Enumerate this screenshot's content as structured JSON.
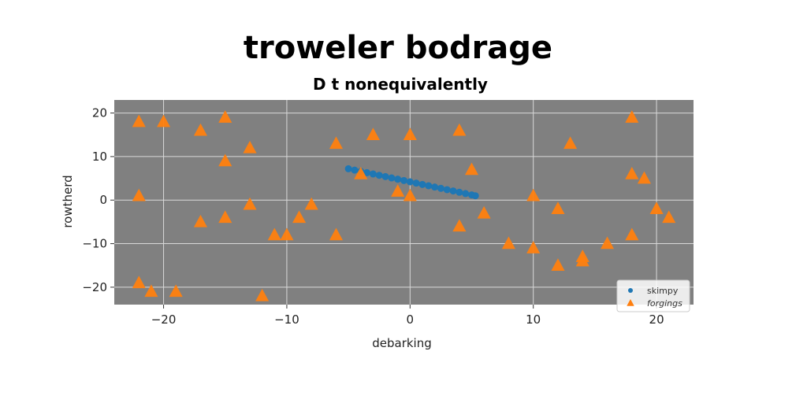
{
  "chart_data": {
    "type": "scatter",
    "title": "troweler bodrage",
    "subtitle": "D t nonequivalently",
    "xlabel": "debarking",
    "ylabel": "rowtherd",
    "xlim": [
      -24,
      23
    ],
    "ylim": [
      -24,
      23
    ],
    "xticks": [
      -20,
      -10,
      0,
      10,
      20
    ],
    "xtick_labels": [
      "−20",
      "−10",
      "0",
      "10",
      "20"
    ],
    "yticks": [
      20,
      10,
      0,
      -10,
      -20
    ],
    "ytick_labels": [
      "20",
      "10",
      "0",
      "−10",
      "−20"
    ],
    "grid": true,
    "legend_position": "lower-right",
    "colors": {
      "background": "#808080",
      "grid": "#d9d9d9",
      "skimpy": "#1f77b4",
      "forgings": "#ff7f0e"
    },
    "series": [
      {
        "name": "skimpy",
        "marker": "circle",
        "points": [
          [
            -5.0,
            7.2
          ],
          [
            -4.5,
            6.9
          ],
          [
            -4.0,
            6.6
          ],
          [
            -3.5,
            6.3
          ],
          [
            -3.0,
            6.0
          ],
          [
            -2.5,
            5.7
          ],
          [
            -2.0,
            5.4
          ],
          [
            -1.5,
            5.1
          ],
          [
            -1.0,
            4.8
          ],
          [
            -0.5,
            4.5
          ],
          [
            0.0,
            4.2
          ],
          [
            0.5,
            3.9
          ],
          [
            1.0,
            3.6
          ],
          [
            1.5,
            3.3
          ],
          [
            2.0,
            3.0
          ],
          [
            2.5,
            2.7
          ],
          [
            3.0,
            2.4
          ],
          [
            3.5,
            2.1
          ],
          [
            4.0,
            1.8
          ],
          [
            4.5,
            1.5
          ],
          [
            5.0,
            1.2
          ],
          [
            5.3,
            1.0
          ]
        ]
      },
      {
        "name": "forgings",
        "marker": "triangle",
        "points": [
          [
            -22,
            18
          ],
          [
            -20,
            18
          ],
          [
            -17,
            16
          ],
          [
            -15,
            19
          ],
          [
            -15,
            9
          ],
          [
            -13,
            12
          ],
          [
            -22,
            1
          ],
          [
            -17,
            -5
          ],
          [
            -15,
            -4
          ],
          [
            -13,
            -1
          ],
          [
            -11,
            -8
          ],
          [
            -10,
            -8
          ],
          [
            -9,
            -4
          ],
          [
            -8,
            -1
          ],
          [
            -6,
            -8
          ],
          [
            -6,
            13
          ],
          [
            -4,
            6
          ],
          [
            -3,
            15
          ],
          [
            0,
            15
          ],
          [
            -1,
            2
          ],
          [
            0,
            1
          ],
          [
            4,
            16
          ],
          [
            4,
            -6
          ],
          [
            5,
            7
          ],
          [
            6,
            -3
          ],
          [
            8,
            -10
          ],
          [
            10,
            -11
          ],
          [
            10,
            1
          ],
          [
            12,
            -2
          ],
          [
            12,
            -15
          ],
          [
            13,
            13
          ],
          [
            14,
            -14
          ],
          [
            14,
            -13
          ],
          [
            16,
            -10
          ],
          [
            18,
            -8
          ],
          [
            18,
            6
          ],
          [
            19,
            5
          ],
          [
            18,
            19
          ],
          [
            20,
            -2
          ],
          [
            21,
            -4
          ],
          [
            -22,
            -19
          ],
          [
            -21,
            -21
          ],
          [
            -19,
            -21
          ],
          [
            -12,
            -22
          ]
        ]
      }
    ]
  }
}
